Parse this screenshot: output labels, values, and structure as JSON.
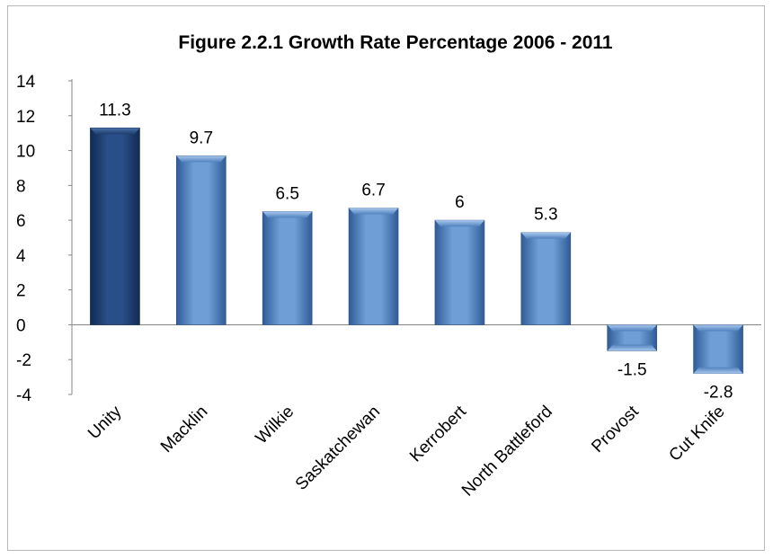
{
  "chart_data": {
    "type": "bar",
    "title": "Figure 2.2.1 Growth Rate Percentage 2006 - 2011",
    "xlabel": "",
    "ylabel": "",
    "categories": [
      "Unity",
      "Macklin",
      "Wilkie",
      "Saskatchewan",
      "Kerrobert",
      "North Battleford",
      "Provost",
      "Cut Knife"
    ],
    "values": [
      11.3,
      9.7,
      6.5,
      6.7,
      6,
      5.3,
      -1.5,
      -2.8
    ],
    "value_labels": [
      "11.3",
      "9.7",
      "6.5",
      "6.7",
      "6",
      "5.3",
      "-1.5",
      "-2.8"
    ],
    "y_ticks": [
      "14",
      "12",
      "10",
      "8",
      "6",
      "4",
      "2",
      "0",
      "-2",
      "-4"
    ],
    "ylim": [
      -4,
      14
    ],
    "grid": false,
    "legend": "none",
    "colors": {
      "highlight_bar": "#1f3d6e",
      "bar": "#4f81bd",
      "bar_light": "#8db3e2",
      "bar_dark": "#2c5283"
    },
    "highlight_index": 0
  }
}
